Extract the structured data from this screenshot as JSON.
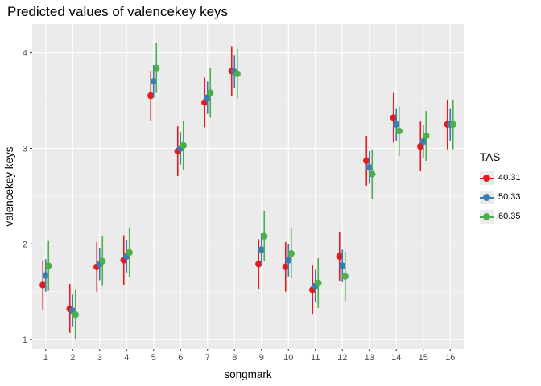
{
  "chart_data": {
    "type": "scatter",
    "title": "Predicted values of valencekey keys",
    "xlabel": "songmark",
    "ylabel": "valencekey keys",
    "categories": [
      "1",
      "2",
      "3",
      "4",
      "5",
      "6",
      "7",
      "8",
      "9",
      "10",
      "11",
      "12",
      "13",
      "14",
      "15",
      "16"
    ],
    "ylim": [
      0.9,
      4.3
    ],
    "yticks": [
      1,
      2,
      3,
      4
    ],
    "grid": true,
    "legend": {
      "title": "TAS",
      "placement": "right"
    },
    "series": [
      {
        "name": "40.31",
        "color": "#E41A1C",
        "values": [
          1.57,
          1.32,
          1.76,
          1.83,
          3.55,
          2.97,
          3.48,
          3.81,
          1.79,
          1.76,
          1.52,
          1.87,
          2.87,
          3.32,
          3.02,
          3.25
        ],
        "lower": [
          1.31,
          1.07,
          1.5,
          1.57,
          3.29,
          2.71,
          3.22,
          3.55,
          1.53,
          1.5,
          1.26,
          1.61,
          2.61,
          3.06,
          2.76,
          2.99
        ],
        "upper": [
          1.83,
          1.58,
          2.02,
          2.09,
          3.81,
          3.23,
          3.74,
          4.07,
          2.05,
          2.02,
          1.78,
          2.13,
          3.13,
          3.58,
          3.28,
          3.51
        ]
      },
      {
        "name": "50.33",
        "color": "#377EB8",
        "values": [
          1.67,
          1.3,
          1.79,
          1.87,
          3.7,
          3.0,
          3.53,
          3.8,
          1.94,
          1.83,
          1.56,
          1.77,
          2.8,
          3.25,
          3.07,
          3.25
        ],
        "lower": [
          1.5,
          1.13,
          1.62,
          1.7,
          3.53,
          2.83,
          3.36,
          3.63,
          1.77,
          1.66,
          1.39,
          1.6,
          2.63,
          3.08,
          2.9,
          3.08
        ],
        "upper": [
          1.84,
          1.47,
          1.96,
          2.04,
          3.87,
          3.17,
          3.7,
          3.97,
          2.11,
          2.0,
          1.73,
          1.94,
          2.97,
          3.42,
          3.24,
          3.42
        ]
      },
      {
        "name": "60.35",
        "color": "#4DAF4A",
        "values": [
          1.77,
          1.26,
          1.82,
          1.91,
          3.84,
          3.03,
          3.58,
          3.78,
          2.08,
          1.9,
          1.59,
          1.66,
          2.73,
          3.18,
          3.13,
          3.25
        ],
        "lower": [
          1.51,
          1.0,
          1.56,
          1.65,
          3.58,
          2.77,
          3.32,
          3.52,
          1.82,
          1.64,
          1.33,
          1.4,
          2.47,
          2.92,
          2.87,
          2.99
        ],
        "upper": [
          2.03,
          1.52,
          2.08,
          2.17,
          4.1,
          3.29,
          3.84,
          4.04,
          2.34,
          2.16,
          1.85,
          1.92,
          2.99,
          3.44,
          3.39,
          3.51
        ]
      }
    ]
  }
}
